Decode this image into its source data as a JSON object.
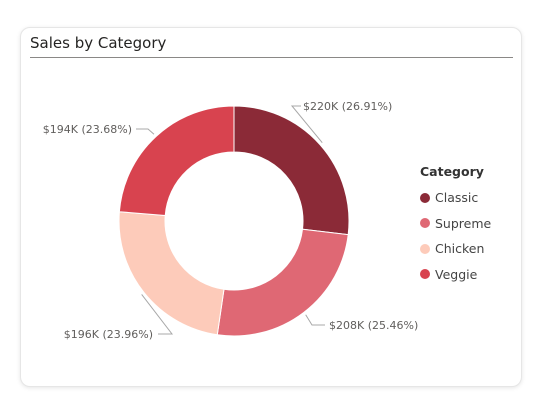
{
  "card": {
    "title": "Sales by Category"
  },
  "chart_data": {
    "type": "pie",
    "donut": true,
    "title": "Sales by Category",
    "legend_title": "Category",
    "legend_position": "right",
    "categories": [
      "Classic",
      "Supreme",
      "Chicken",
      "Veggie"
    ],
    "values": [
      220,
      208,
      196,
      194
    ],
    "value_unit": "K USD",
    "data_labels": [
      "$220K (26.91%)",
      "$208K (25.46%)",
      "$196K (23.96%)",
      "$194K (23.68%)"
    ],
    "percentages": [
      26.91,
      25.46,
      23.96,
      23.68
    ],
    "colors": [
      "#8b2a37",
      "#df6874",
      "#fdcbba",
      "#d8434f"
    ]
  }
}
